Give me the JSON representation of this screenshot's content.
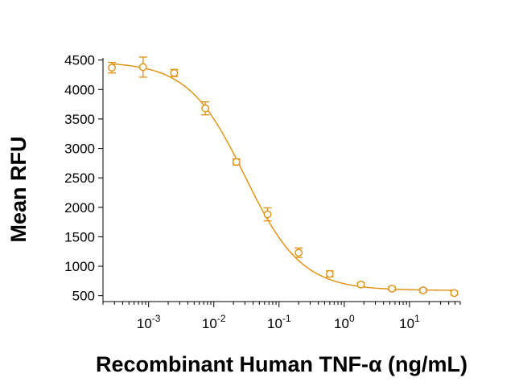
{
  "chart_data": {
    "type": "scatter",
    "xlabel": "Recombinant Human TNF-α (ng/mL)",
    "ylabel": "Mean RFU",
    "xscale": "log",
    "xlim": [
      0.0002,
      60
    ],
    "ylim": [
      400,
      4700
    ],
    "grid": false,
    "color": "#E0900E",
    "yticks": [
      "500",
      "1000",
      "1500",
      "2000",
      "2500",
      "3000",
      "3500",
      "4000",
      "4500"
    ],
    "xticks": [
      {
        "base": "10",
        "exp": "-3"
      },
      {
        "base": "10",
        "exp": "-2"
      },
      {
        "base": "10",
        "exp": "-1"
      },
      {
        "base": "10",
        "exp": "0"
      },
      {
        "base": "10",
        "exp": "1"
      }
    ],
    "series": [
      {
        "points": [
          {
            "x": 0.000274,
            "y": 4370,
            "err": 90
          },
          {
            "x": 0.000823,
            "y": 4380,
            "err": 170
          },
          {
            "x": 0.00247,
            "y": 4280,
            "err": 60
          },
          {
            "x": 0.00741,
            "y": 3680,
            "err": 110
          },
          {
            "x": 0.0222,
            "y": 2770,
            "err": 50
          },
          {
            "x": 0.0667,
            "y": 1880,
            "err": 110
          },
          {
            "x": 0.2,
            "y": 1230,
            "err": 80
          },
          {
            "x": 0.6,
            "y": 870,
            "err": 50
          },
          {
            "x": 1.8,
            "y": 690,
            "err": 30
          },
          {
            "x": 5.4,
            "y": 620,
            "err": 30
          },
          {
            "x": 16.2,
            "y": 590,
            "err": 30
          },
          {
            "x": 48.6,
            "y": 545,
            "err": 30
          }
        ],
        "fit": {
          "type": "4PL",
          "top": 4470,
          "bottom": 590,
          "ec50": 0.03,
          "hill": 1.0
        }
      }
    ]
  }
}
